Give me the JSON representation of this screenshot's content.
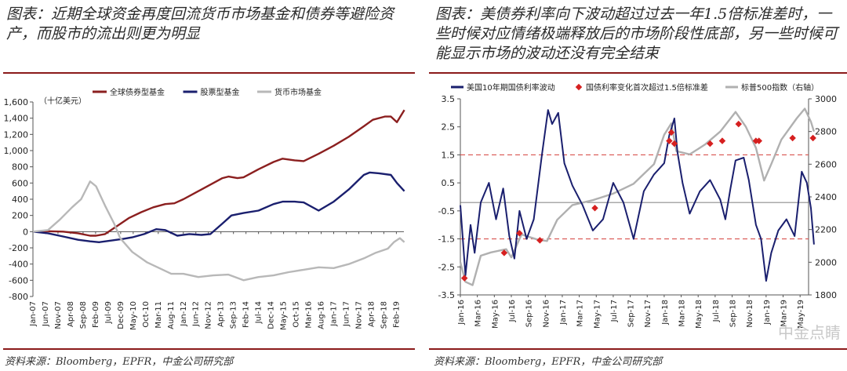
{
  "left": {
    "title": "图表：近期全球资金再度回流货币市场基金和债券等避险资产，而股市的流出则更为明显",
    "source": "资料来源：Bloomberg，EPFR，中金公司研究部"
  },
  "right": {
    "title": "图表：美债券利率向下波动超过过去一年1.5倍标准差时，一些时候对应情绪极端释放后的市场阶段性底部，另一些时候可能显示市场的波动还没有完全结束",
    "source": "资料来源：Bloomberg，EPFR，中金公司研究部"
  },
  "watermark": "中金点睛",
  "chart_data": [
    {
      "type": "line",
      "unit_label": "（十亿美元）",
      "ylim": [
        -800,
        1600
      ],
      "y_ticks": [
        "1,600",
        "1,400",
        "1,200",
        "1,000",
        "800",
        "600",
        "400",
        "200",
        "0",
        "-200",
        "-400",
        "-600",
        "-800"
      ],
      "x_ticks": [
        "Jan-07",
        "Jun-07",
        "Nov-07",
        "Apr-08",
        "Sep-08",
        "Feb-09",
        "Jul-09",
        "Dec-09",
        "May-10",
        "Oct-10",
        "Mar-11",
        "Aug-11",
        "Jan-12",
        "Jun-12",
        "Nov-12",
        "Apr-13",
        "Sep-13",
        "Feb-14",
        "Jul-14",
        "Dec-14",
        "May-15",
        "Oct-15",
        "Mar-16",
        "Aug-16",
        "Jan-17",
        "Jun-17",
        "Nov-17",
        "Apr-18",
        "Sep-18",
        "Feb-19"
      ],
      "x_range": [
        "2007-01",
        "2019-05"
      ],
      "series": [
        {
          "name": "全球债券型基金",
          "color": "#8b1f1f",
          "t": [
            2007.0,
            2007.5,
            2008.0,
            2008.5,
            2008.9,
            2009.1,
            2009.4,
            2009.8,
            2010.2,
            2010.6,
            2011.0,
            2011.4,
            2011.7,
            2012.0,
            2012.5,
            2013.0,
            2013.3,
            2013.5,
            2013.8,
            2014.0,
            2014.5,
            2015.0,
            2015.3,
            2015.7,
            2016.0,
            2016.5,
            2017.0,
            2017.5,
            2018.0,
            2018.3,
            2018.7,
            2018.9,
            2019.1,
            2019.35
          ],
          "v": [
            0,
            5,
            0,
            -20,
            -50,
            -50,
            -30,
            70,
            170,
            240,
            300,
            340,
            350,
            400,
            500,
            600,
            660,
            680,
            660,
            670,
            770,
            860,
            900,
            880,
            870,
            960,
            1060,
            1170,
            1300,
            1380,
            1420,
            1420,
            1350,
            1500
          ]
        },
        {
          "name": "股票型基金",
          "color": "#1a1f6e",
          "t": [
            2007.0,
            2007.5,
            2008.0,
            2008.5,
            2008.9,
            2009.2,
            2009.6,
            2010.0,
            2010.3,
            2010.7,
            2011.1,
            2011.4,
            2011.8,
            2012.2,
            2012.6,
            2012.9,
            2013.3,
            2013.6,
            2014.0,
            2014.5,
            2015.0,
            2015.3,
            2015.7,
            2016.0,
            2016.5,
            2017.0,
            2017.5,
            2018.0,
            2018.2,
            2018.5,
            2018.9,
            2019.1,
            2019.35
          ],
          "v": [
            0,
            -20,
            -60,
            -100,
            -120,
            -130,
            -110,
            -90,
            -70,
            -30,
            30,
            20,
            -50,
            -30,
            -40,
            -30,
            100,
            200,
            230,
            260,
            340,
            370,
            370,
            360,
            260,
            370,
            520,
            700,
            730,
            720,
            700,
            600,
            500
          ]
        },
        {
          "name": "货币市场基金",
          "color": "#b8b8b8",
          "t": [
            2007.0,
            2007.5,
            2007.9,
            2008.3,
            2008.6,
            2008.9,
            2009.1,
            2009.4,
            2009.7,
            2009.9,
            2010.3,
            2010.8,
            2011.2,
            2011.6,
            2012.0,
            2012.5,
            2013.0,
            2013.5,
            2014.0,
            2014.5,
            2015.0,
            2015.5,
            2016.0,
            2016.5,
            2017.0,
            2017.5,
            2018.0,
            2018.4,
            2018.8,
            2019.0,
            2019.2,
            2019.35
          ],
          "v": [
            0,
            20,
            150,
            300,
            400,
            620,
            560,
            320,
            100,
            -80,
            -250,
            -380,
            -450,
            -520,
            -520,
            -560,
            -540,
            -530,
            -600,
            -560,
            -540,
            -500,
            -470,
            -440,
            -450,
            -400,
            -330,
            -260,
            -210,
            -130,
            -80,
            -130
          ]
        }
      ]
    },
    {
      "type": "line",
      "left_ylim": [
        -3.5,
        3.5
      ],
      "left_ticks": [
        "3.5",
        "2.5",
        "1.5",
        "0.5",
        "-0.5",
        "-1.5",
        "-2.5",
        "-3.5"
      ],
      "right_ylim": [
        1800,
        3000
      ],
      "right_ticks": [
        "3000",
        "2800",
        "2600",
        "2400",
        "2200",
        "2000",
        "1800"
      ],
      "reference_lines": [
        1.5,
        -1.5
      ],
      "x_ticks": [
        "Jan-16",
        "Mar-16",
        "May-16",
        "Jul-16",
        "Sep-16",
        "Nov-16",
        "Jan-17",
        "Mar-17",
        "May-17",
        "Jul-17",
        "Sep-17",
        "Nov-17",
        "Jan-18",
        "Mar-18",
        "May-18",
        "Jul-18",
        "Sep-18",
        "Nov-18",
        "Jan-19",
        "Mar-19",
        "May-19"
      ],
      "x_range": [
        "2016-01",
        "2019-06"
      ],
      "series": [
        {
          "name": "美国10年期国债利率波动",
          "color": "#1a1f6e",
          "axis": "left",
          "t": [
            2016.0,
            2016.05,
            2016.1,
            2016.14,
            2016.2,
            2016.28,
            2016.35,
            2016.42,
            2016.48,
            2016.53,
            2016.58,
            2016.65,
            2016.72,
            2016.8,
            2016.86,
            2016.9,
            2016.96,
            2017.02,
            2017.1,
            2017.2,
            2017.3,
            2017.4,
            2017.5,
            2017.6,
            2017.7,
            2017.8,
            2017.9,
            2018.0,
            2018.05,
            2018.1,
            2018.13,
            2018.18,
            2018.25,
            2018.35,
            2018.45,
            2018.55,
            2018.6,
            2018.65,
            2018.7,
            2018.78,
            2018.83,
            2018.9,
            2018.95,
            2019.0,
            2019.05,
            2019.12,
            2019.2,
            2019.28,
            2019.35,
            2019.4,
            2019.44,
            2019.47
          ],
          "v": [
            -0.3,
            -2.8,
            -1.0,
            -2.0,
            -0.2,
            0.5,
            -0.8,
            0.3,
            -1.4,
            -2.2,
            -0.5,
            -1.5,
            -0.8,
            1.5,
            3.1,
            2.6,
            3.0,
            1.2,
            0.4,
            -0.3,
            -1.2,
            -0.8,
            0.5,
            -0.2,
            -1.5,
            0.2,
            0.8,
            1.2,
            2.2,
            2.8,
            1.6,
            0.5,
            -0.6,
            0.2,
            0.6,
            -0.1,
            -0.8,
            0.3,
            1.3,
            1.4,
            0.6,
            -1.0,
            -1.5,
            -3.0,
            -2.0,
            -1.2,
            -0.8,
            -1.4,
            0.9,
            0.5,
            -0.4,
            -1.7
          ]
        },
        {
          "name": "国债利率变化首次超过1.5倍标准差",
          "color": "#d62020",
          "axis": "left",
          "marker": "diamond",
          "t": [
            2016.04,
            2016.43,
            2016.58,
            2016.78,
            2017.32,
            2018.05,
            2018.07,
            2018.1,
            2018.45,
            2018.57,
            2018.73,
            2018.9,
            2018.93,
            2019.26,
            2019.46
          ],
          "v": [
            -2.9,
            -2.0,
            -1.3,
            -1.55,
            -0.4,
            2.0,
            2.3,
            1.9,
            1.9,
            2.0,
            2.6,
            2.0,
            2.0,
            2.1,
            2.1
          ]
        },
        {
          "name": "标普500指数（右轴）",
          "color": "#b0b0b0",
          "axis": "right",
          "t": [
            2016.0,
            2016.05,
            2016.12,
            2016.2,
            2016.3,
            2016.45,
            2016.5,
            2016.6,
            2016.75,
            2016.85,
            2016.95,
            2017.1,
            2017.3,
            2017.5,
            2017.7,
            2017.9,
            2018.0,
            2018.07,
            2018.12,
            2018.25,
            2018.4,
            2018.55,
            2018.7,
            2018.8,
            2018.9,
            2018.98,
            2019.05,
            2019.15,
            2019.3,
            2019.38,
            2019.44,
            2019.47
          ],
          "v": [
            2000,
            1880,
            1860,
            2040,
            2060,
            2080,
            2030,
            2170,
            2140,
            2130,
            2260,
            2350,
            2380,
            2420,
            2480,
            2600,
            2780,
            2850,
            2680,
            2660,
            2720,
            2800,
            2920,
            2830,
            2700,
            2500,
            2600,
            2750,
            2880,
            2940,
            2860,
            2800
          ]
        }
      ]
    }
  ]
}
